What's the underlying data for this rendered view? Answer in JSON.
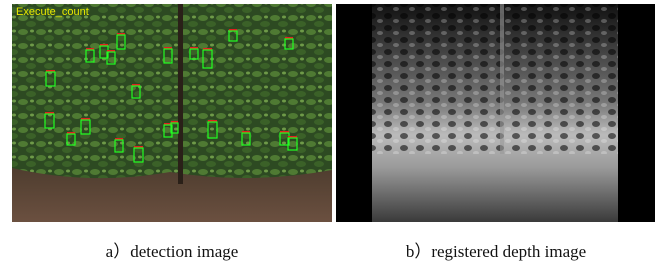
{
  "figure": {
    "panels": [
      {
        "overlay_text": "Execute_count",
        "caption": "a）detection image"
      },
      {
        "caption": "b）registered depth image"
      }
    ]
  }
}
